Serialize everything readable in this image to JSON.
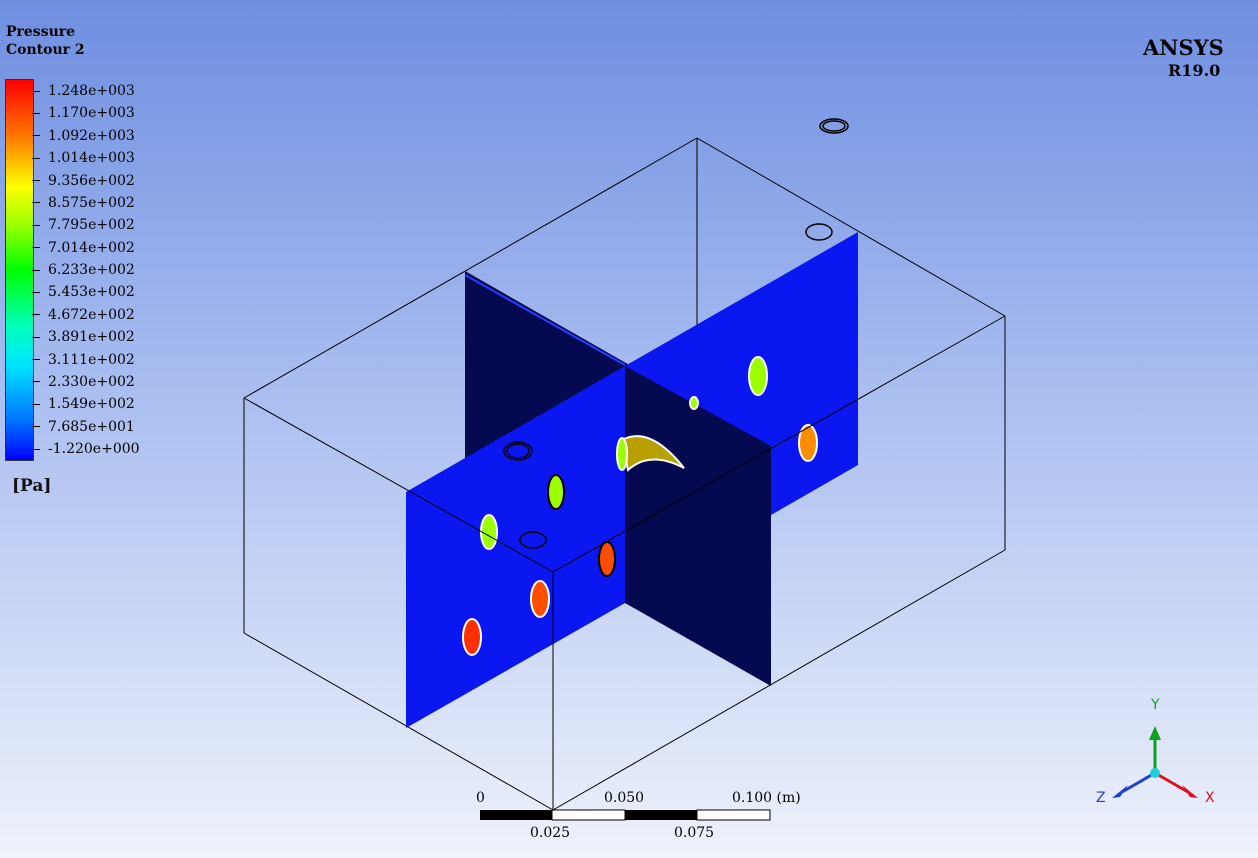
{
  "legend": {
    "title_line1": "Pressure",
    "title_line2": "Contour 2",
    "unit": "[Pa]",
    "values": [
      "1.248e+003",
      "1.170e+003",
      "1.092e+003",
      "1.014e+003",
      "9.356e+002",
      "8.575e+002",
      "7.795e+002",
      "7.014e+002",
      "6.233e+002",
      "5.453e+002",
      "4.672e+002",
      "3.891e+002",
      "3.111e+002",
      "2.330e+002",
      "1.549e+002",
      "7.685e+001",
      "-1.220e+000"
    ],
    "colors": [
      "#ff0000",
      "#ff4d00",
      "#ff8c00",
      "#ffc400",
      "#ffff00",
      "#c8ff00",
      "#9cff00",
      "#5cff00",
      "#00ff00",
      "#00ff6e",
      "#00ffbe",
      "#00ffff",
      "#00e5ff",
      "#00b4ff",
      "#0078ff",
      "#003cff",
      "#0000ff"
    ]
  },
  "brand": {
    "name": "ANSYS",
    "version": "R19.0"
  },
  "scale": {
    "top_labels": [
      "0",
      "0.050",
      "0.100 (m)"
    ],
    "bottom_labels": [
      "0.025",
      "0.075"
    ]
  },
  "triad": {
    "x": "X",
    "y": "Y",
    "z": "Z",
    "x_color": "#e01020",
    "y_color": "#10a020",
    "z_color": "#2040d0"
  },
  "colors": {
    "plane_blue": "#0a17f0",
    "plane_dark": "#050a50"
  }
}
